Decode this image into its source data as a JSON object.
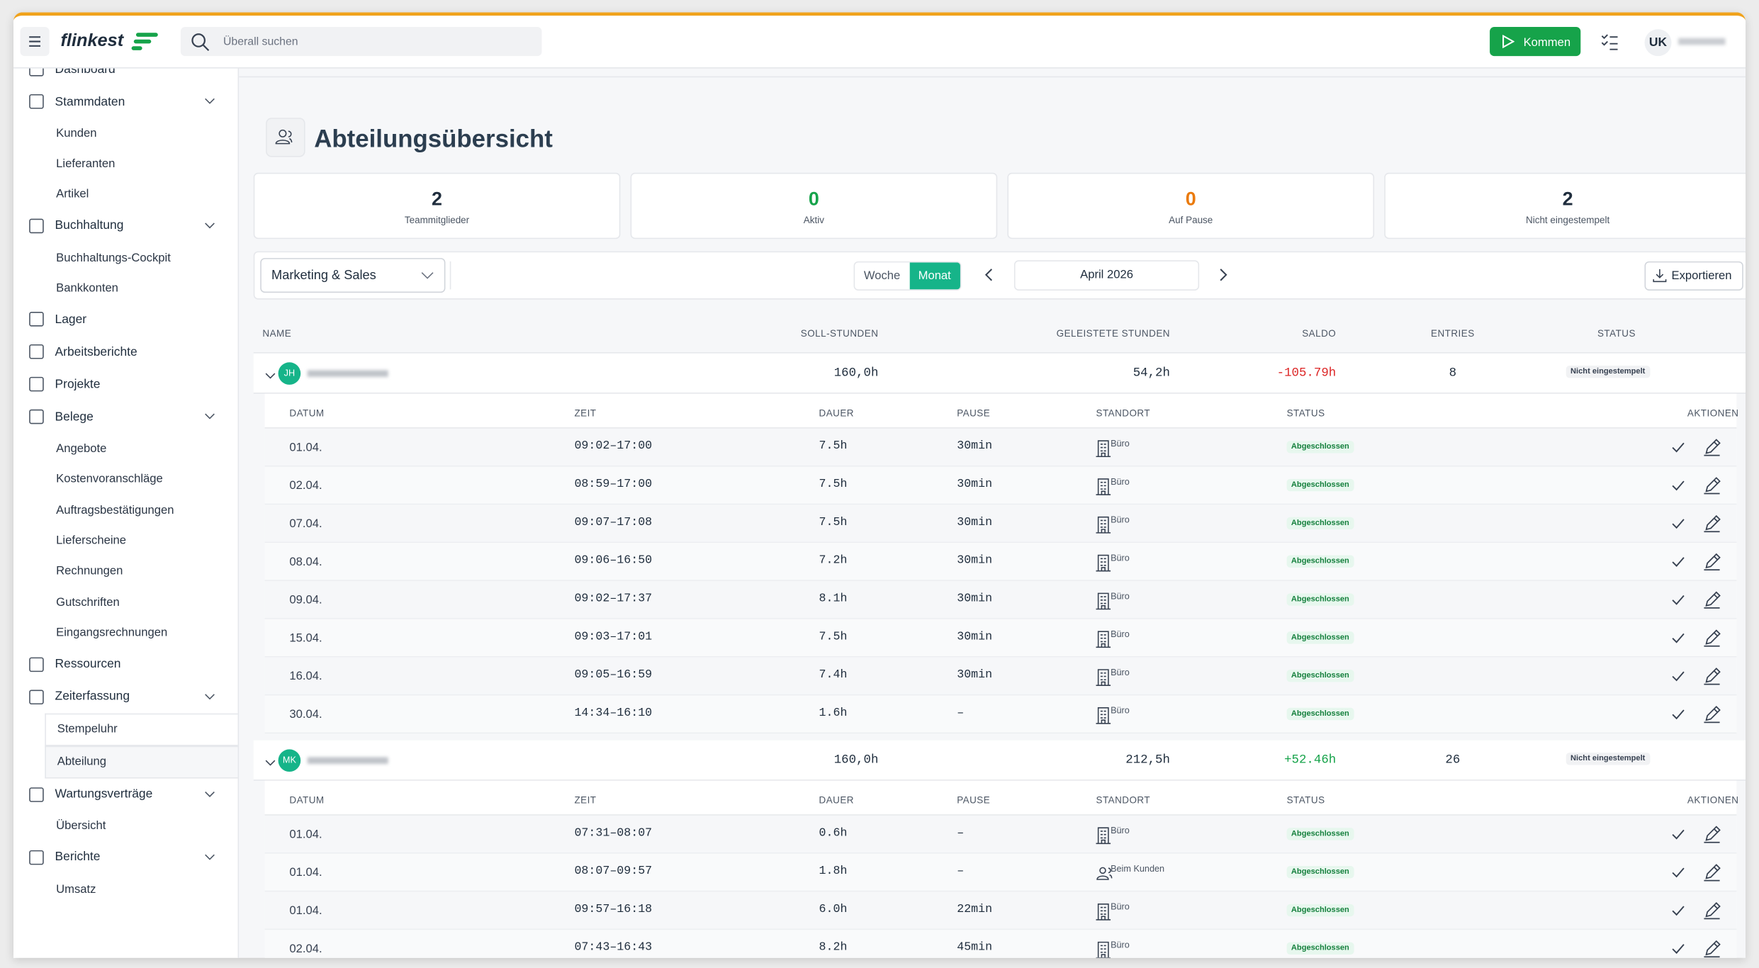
{
  "header": {
    "logo": "flinkest",
    "search_placeholder": "Überall suchen",
    "clock_in": "Kommen",
    "user_initials": "UK"
  },
  "sidebar": [
    {
      "label": "Dashboard"
    },
    {
      "label": "Stammdaten",
      "children": [
        {
          "label": "Kunden"
        },
        {
          "label": "Lieferanten"
        },
        {
          "label": "Artikel"
        }
      ]
    },
    {
      "label": "Buchhaltung",
      "children": [
        {
          "label": "Buchhaltungs-Cockpit"
        },
        {
          "label": "Bankkonten"
        }
      ]
    },
    {
      "label": "Lager"
    },
    {
      "label": "Arbeitsberichte"
    },
    {
      "label": "Projekte"
    },
    {
      "label": "Belege",
      "children": [
        {
          "label": "Angebote"
        },
        {
          "label": "Kostenvoranschläge"
        },
        {
          "label": "Auftragsbestätigungen"
        },
        {
          "label": "Lieferscheine"
        },
        {
          "label": "Rechnungen"
        },
        {
          "label": "Gutschriften"
        },
        {
          "label": "Eingangsrechnungen"
        }
      ]
    },
    {
      "label": "Ressourcen"
    },
    {
      "label": "Zeiterfassung",
      "children": [
        {
          "label": "Stempeluhr",
          "boxed": true
        },
        {
          "label": "Abteilung",
          "boxed": true,
          "active": true
        }
      ]
    },
    {
      "label": "Wartungsverträge",
      "children": [
        {
          "label": "Übersicht"
        }
      ]
    },
    {
      "label": "Berichte",
      "children": [
        {
          "label": "Umsatz"
        }
      ]
    }
  ],
  "page": {
    "title": "Abteilungsübersicht"
  },
  "stats": [
    {
      "value": 2,
      "label": "Teammitglieder",
      "color": "#1f2d3d"
    },
    {
      "value": 0,
      "label": "Aktiv",
      "color": "#16a34a"
    },
    {
      "value": 0,
      "label": "Auf Pause",
      "color": "#ea7a0c"
    },
    {
      "value": 2,
      "label": "Nicht eingestempelt",
      "color": "#1f2d3d"
    }
  ],
  "toolbar": {
    "department": "Marketing & Sales",
    "views": [
      "Woche",
      "Monat"
    ],
    "active_view": 1,
    "period": "April 2026",
    "export": "Exportieren"
  },
  "table": {
    "columns": [
      "NAME",
      "SOLL-STUNDEN",
      "GELEISTETE STUNDEN",
      "SALDO",
      "ENTRIES",
      "STATUS"
    ],
    "detail_columns": [
      "DATUM",
      "ZEIT",
      "DAUER",
      "PAUSE",
      "STANDORT",
      "STATUS",
      "AKTIONEN"
    ],
    "employees": [
      {
        "initials": "JH",
        "target": "160,0h",
        "worked": "54,2h",
        "balance": "-105.79h",
        "balance_color": "#dc2626",
        "entries": 8,
        "status": "Nicht eingestempelt",
        "rows": [
          [
            "01.04.",
            "09:02–17:00",
            "7.5h",
            "30min",
            "Büro",
            "Abgeschlossen"
          ],
          [
            "02.04.",
            "08:59–17:00",
            "7.5h",
            "30min",
            "Büro",
            "Abgeschlossen"
          ],
          [
            "07.04.",
            "09:07–17:08",
            "7.5h",
            "30min",
            "Büro",
            "Abgeschlossen"
          ],
          [
            "08.04.",
            "09:06–16:50",
            "7.2h",
            "30min",
            "Büro",
            "Abgeschlossen"
          ],
          [
            "09.04.",
            "09:02–17:37",
            "8.1h",
            "30min",
            "Büro",
            "Abgeschlossen"
          ],
          [
            "15.04.",
            "09:03–17:01",
            "7.5h",
            "30min",
            "Büro",
            "Abgeschlossen"
          ],
          [
            "16.04.",
            "09:05–16:59",
            "7.4h",
            "30min",
            "Büro",
            "Abgeschlossen"
          ],
          [
            "30.04.",
            "14:34–16:10",
            "1.6h",
            "–",
            "Büro",
            "Abgeschlossen"
          ]
        ]
      },
      {
        "initials": "MK",
        "target": "160,0h",
        "worked": "212,5h",
        "balance": "+52.46h",
        "balance_color": "#16a34a",
        "entries": 26,
        "status": "Nicht eingestempelt",
        "rows": [
          [
            "01.04.",
            "07:31–08:07",
            "0.6h",
            "–",
            "Büro",
            "Abgeschlossen"
          ],
          [
            "01.04.",
            "08:07–09:57",
            "1.8h",
            "–",
            "Beim Kunden",
            "Abgeschlossen"
          ],
          [
            "01.04.",
            "09:57–16:18",
            "6.0h",
            "22min",
            "Büro",
            "Abgeschlossen"
          ],
          [
            "02.04.",
            "07:43–16:43",
            "8.2h",
            "45min",
            "Büro",
            "Abgeschlossen"
          ]
        ]
      }
    ]
  }
}
